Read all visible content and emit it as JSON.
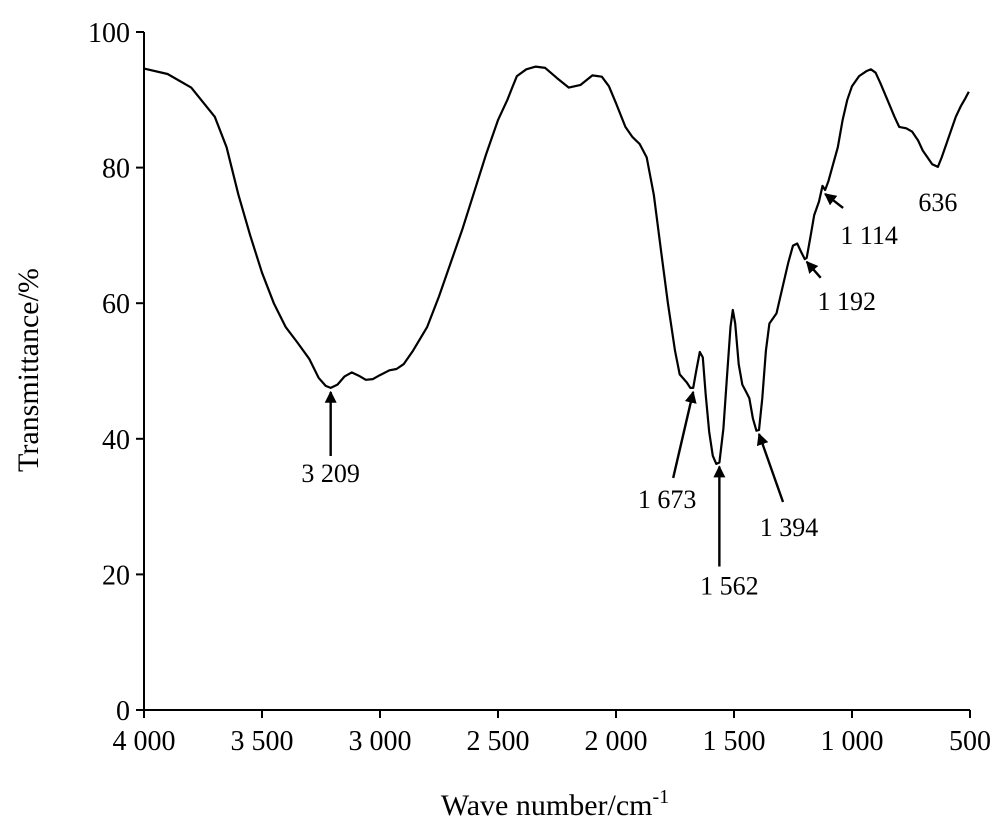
{
  "chart_data": {
    "type": "line",
    "title": "",
    "xlabel": "Wave number/cm",
    "xlabel_sup": "-1",
    "ylabel": "Transmittance/%",
    "xlim": [
      4000,
      500
    ],
    "ylim": [
      0,
      100
    ],
    "x_reversed": true,
    "grid": false,
    "legend": "none",
    "x_ticks": [
      {
        "value": 4000,
        "label": "4 000"
      },
      {
        "value": 3500,
        "label": "3 500"
      },
      {
        "value": 3000,
        "label": "3 000"
      },
      {
        "value": 2500,
        "label": "2 500"
      },
      {
        "value": 2000,
        "label": "2 000"
      },
      {
        "value": 1500,
        "label": "1 500"
      },
      {
        "value": 1000,
        "label": "1 000"
      },
      {
        "value": 500,
        "label": "500"
      }
    ],
    "y_ticks": [
      {
        "value": 0,
        "label": "0"
      },
      {
        "value": 20,
        "label": "20"
      },
      {
        "value": 40,
        "label": "40"
      },
      {
        "value": 60,
        "label": "60"
      },
      {
        "value": 80,
        "label": "80"
      },
      {
        "value": 100,
        "label": "100"
      }
    ],
    "series": [
      {
        "color": "#000000",
        "points": [
          [
            4000,
            94.6
          ],
          [
            3900,
            93.8
          ],
          [
            3800,
            91.8
          ],
          [
            3700,
            87.5
          ],
          [
            3650,
            83.0
          ],
          [
            3600,
            76.0
          ],
          [
            3550,
            70.0
          ],
          [
            3500,
            64.5
          ],
          [
            3450,
            60.0
          ],
          [
            3400,
            56.5
          ],
          [
            3350,
            54.2
          ],
          [
            3300,
            51.8
          ],
          [
            3260,
            49.0
          ],
          [
            3230,
            47.8
          ],
          [
            3209,
            47.5
          ],
          [
            3180,
            48.0
          ],
          [
            3150,
            49.2
          ],
          [
            3120,
            49.8
          ],
          [
            3090,
            49.3
          ],
          [
            3060,
            48.7
          ],
          [
            3030,
            48.8
          ],
          [
            3000,
            49.4
          ],
          [
            2960,
            50.1
          ],
          [
            2930,
            50.3
          ],
          [
            2900,
            51.0
          ],
          [
            2860,
            53.0
          ],
          [
            2800,
            56.5
          ],
          [
            2750,
            61.0
          ],
          [
            2700,
            66.0
          ],
          [
            2650,
            71.0
          ],
          [
            2600,
            76.5
          ],
          [
            2550,
            82.0
          ],
          [
            2500,
            87.0
          ],
          [
            2460,
            90.0
          ],
          [
            2440,
            91.8
          ],
          [
            2420,
            93.5
          ],
          [
            2380,
            94.5
          ],
          [
            2340,
            94.9
          ],
          [
            2300,
            94.7
          ],
          [
            2250,
            93.2
          ],
          [
            2200,
            91.8
          ],
          [
            2150,
            92.2
          ],
          [
            2100,
            93.6
          ],
          [
            2060,
            93.4
          ],
          [
            2030,
            92.0
          ],
          [
            2000,
            89.5
          ],
          [
            1960,
            86.0
          ],
          [
            1930,
            84.5
          ],
          [
            1900,
            83.5
          ],
          [
            1870,
            81.5
          ],
          [
            1840,
            76.0
          ],
          [
            1810,
            68.0
          ],
          [
            1780,
            60.0
          ],
          [
            1750,
            53.0
          ],
          [
            1730,
            49.5
          ],
          [
            1700,
            48.3
          ],
          [
            1685,
            47.5
          ],
          [
            1673,
            47.5
          ],
          [
            1660,
            50.0
          ],
          [
            1645,
            52.8
          ],
          [
            1632,
            52.0
          ],
          [
            1620,
            46.5
          ],
          [
            1605,
            41.0
          ],
          [
            1590,
            37.5
          ],
          [
            1575,
            36.3
          ],
          [
            1562,
            36.5
          ],
          [
            1545,
            41.5
          ],
          [
            1530,
            49.0
          ],
          [
            1515,
            56.5
          ],
          [
            1505,
            59.0
          ],
          [
            1495,
            57.0
          ],
          [
            1480,
            51.0
          ],
          [
            1465,
            48.0
          ],
          [
            1450,
            47.0
          ],
          [
            1435,
            46.0
          ],
          [
            1420,
            43.0
          ],
          [
            1405,
            41.2
          ],
          [
            1394,
            41.3
          ],
          [
            1380,
            46.0
          ],
          [
            1365,
            53.0
          ],
          [
            1350,
            57.0
          ],
          [
            1320,
            58.5
          ],
          [
            1300,
            61.5
          ],
          [
            1270,
            66.0
          ],
          [
            1250,
            68.5
          ],
          [
            1232,
            68.8
          ],
          [
            1215,
            67.5
          ],
          [
            1200,
            66.5
          ],
          [
            1192,
            66.7
          ],
          [
            1175,
            70.0
          ],
          [
            1160,
            73.0
          ],
          [
            1140,
            75.0
          ],
          [
            1125,
            77.3
          ],
          [
            1114,
            76.7
          ],
          [
            1100,
            78.0
          ],
          [
            1080,
            80.5
          ],
          [
            1060,
            83.0
          ],
          [
            1040,
            87.0
          ],
          [
            1020,
            90.0
          ],
          [
            1000,
            92.0
          ],
          [
            970,
            93.5
          ],
          [
            940,
            94.2
          ],
          [
            920,
            94.5
          ],
          [
            900,
            94.0
          ],
          [
            880,
            92.5
          ],
          [
            850,
            90.0
          ],
          [
            820,
            87.5
          ],
          [
            800,
            86.0
          ],
          [
            770,
            85.8
          ],
          [
            745,
            85.3
          ],
          [
            720,
            84.0
          ],
          [
            700,
            82.5
          ],
          [
            680,
            81.5
          ],
          [
            660,
            80.5
          ],
          [
            636,
            80.1
          ],
          [
            620,
            81.5
          ],
          [
            600,
            83.5
          ],
          [
            580,
            85.5
          ],
          [
            560,
            87.5
          ],
          [
            540,
            89.0
          ],
          [
            520,
            90.2
          ],
          [
            505,
            91.2
          ]
        ]
      }
    ],
    "annotations": [
      {
        "label": "3 209",
        "x": 3209,
        "y": 47.5
      },
      {
        "label": "1 673",
        "x": 1673,
        "y": 47.5
      },
      {
        "label": "1 562",
        "x": 1562,
        "y": 36.5
      },
      {
        "label": "1 394",
        "x": 1394,
        "y": 41.3
      },
      {
        "label": "1 192",
        "x": 1192,
        "y": 66.7
      },
      {
        "label": "1 114",
        "x": 1114,
        "y": 76.7
      },
      {
        "label": "636",
        "x": 636,
        "y": 80.1
      }
    ]
  }
}
